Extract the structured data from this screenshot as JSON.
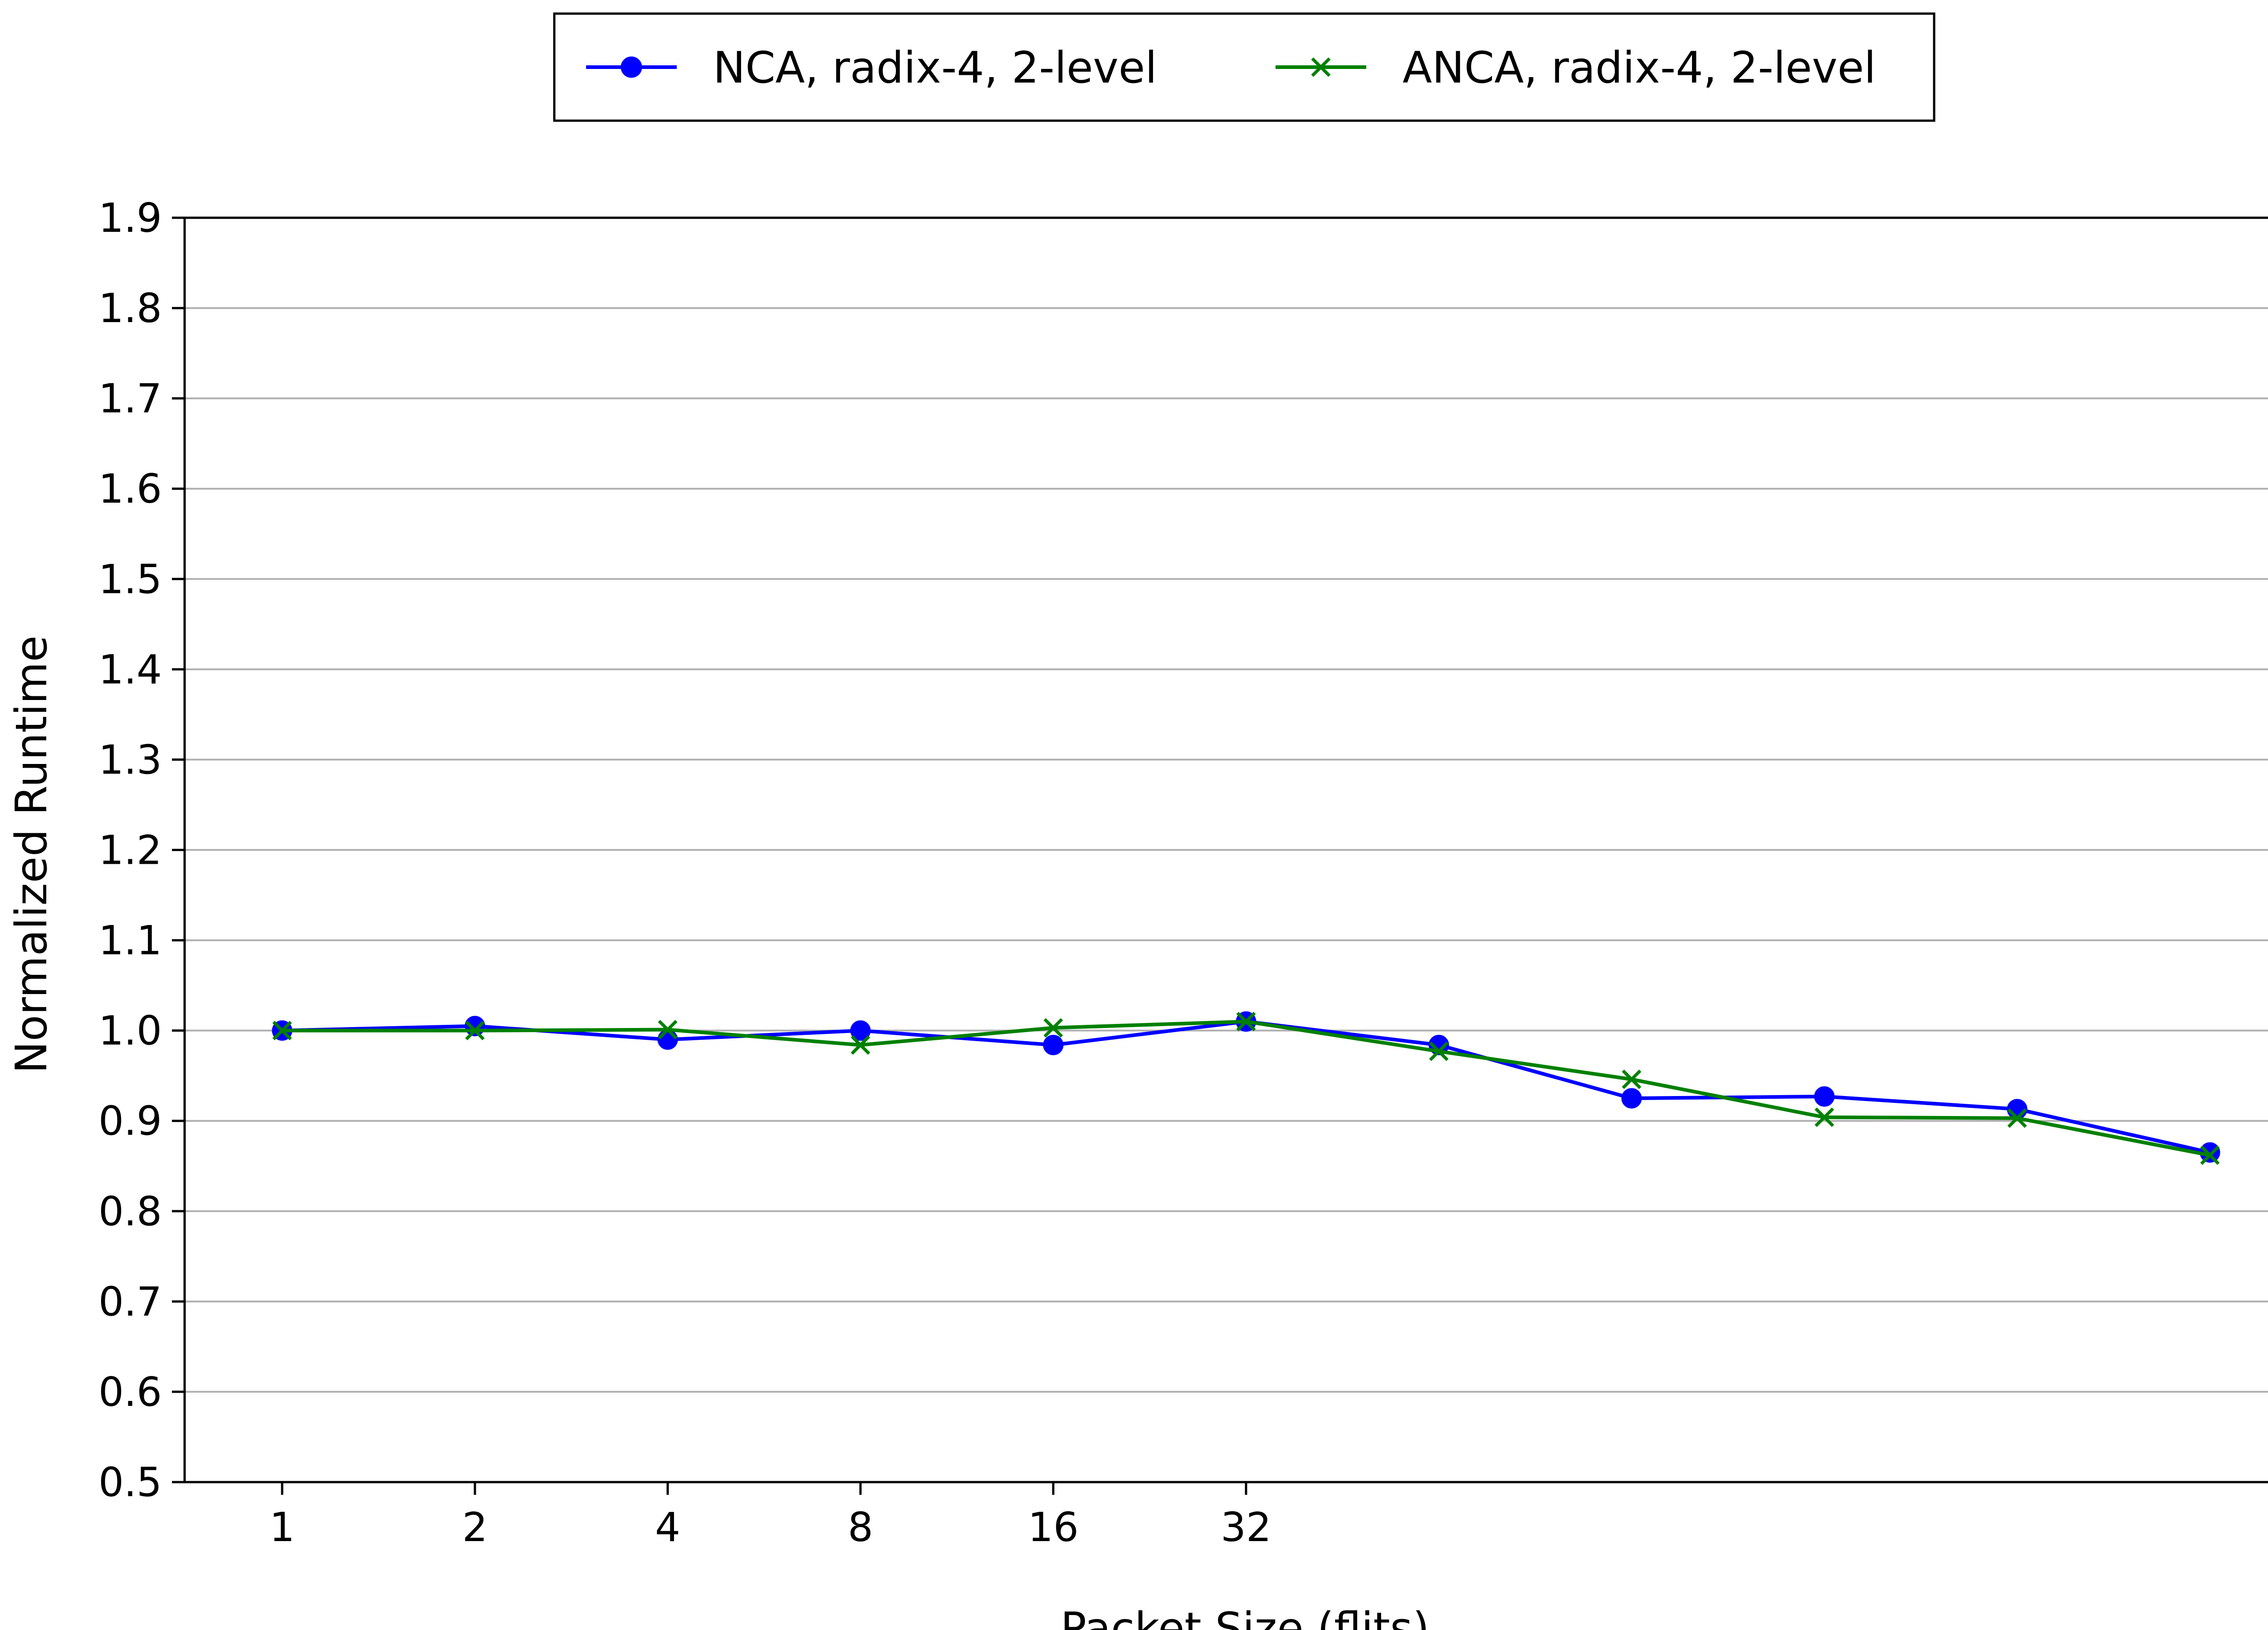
{
  "chart_data": {
    "type": "line",
    "title": "",
    "xlabel": "Packet Size (flits)",
    "ylabel": "Normalized Runtime",
    "ylim": [
      0.5,
      1.9
    ],
    "yticks": [
      "0.5",
      "0.6",
      "0.7",
      "0.8",
      "0.9",
      "1.0",
      "1.1",
      "1.2",
      "1.3",
      "1.4",
      "1.5",
      "1.6",
      "1.7",
      "1.8",
      "1.9"
    ],
    "xticks": [
      "1",
      "2",
      "4",
      "8",
      "16",
      "32"
    ],
    "grid": "y",
    "legend_position": "top-center",
    "series": [
      {
        "name": "NCA, radix-4, 2-level",
        "color": "#0000ff",
        "marker": "circle",
        "values": [
          1.0,
          1.005,
          0.99,
          1.0,
          0.984,
          1.01,
          0.984,
          0.925,
          0.927,
          0.913,
          0.865
        ]
      },
      {
        "name": "ANCA, radix-4, 2-level",
        "color": "#008000",
        "marker": "x",
        "values": [
          1.0,
          1.0,
          1.001,
          0.984,
          1.003,
          1.01,
          0.977,
          0.946,
          0.904,
          0.903,
          0.862
        ]
      }
    ]
  }
}
